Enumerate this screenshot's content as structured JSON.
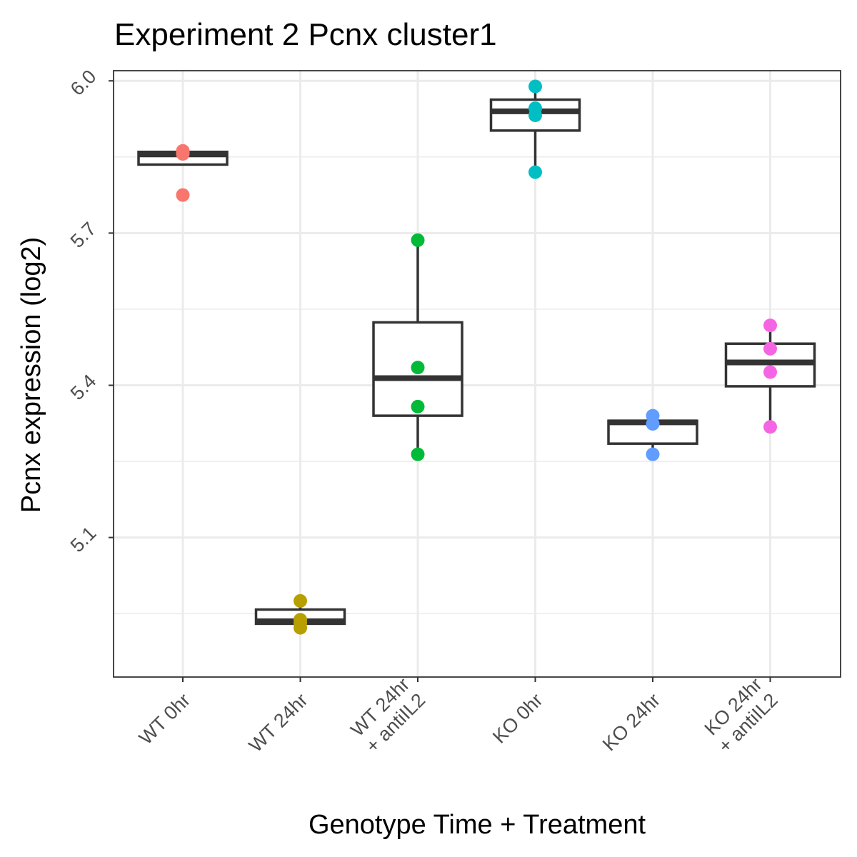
{
  "chart_data": {
    "type": "box",
    "title": "Experiment 2 Pcnx cluster1",
    "xlabel": "Genotype Time + Treatment",
    "ylabel": "Pcnx expression (log2)",
    "ylim": [
      4.825,
      6.02
    ],
    "yticks": [
      {
        "value": 5.1,
        "label": "5.1"
      },
      {
        "value": 5.4,
        "label": "5.4"
      },
      {
        "value": 5.7,
        "label": "5.7"
      },
      {
        "value": 6.0,
        "label": "6.0"
      }
    ],
    "yminor": [
      4.95,
      5.25,
      5.55,
      5.85
    ],
    "groups": [
      {
        "label_lines": [
          "WT 0hr"
        ],
        "color": "#F8766D",
        "box": {
          "q1": 5.835,
          "median": 5.855,
          "q3": 5.86,
          "whisker_low": 5.835,
          "whisker_high": 5.862
        },
        "points": [
          5.775,
          5.858,
          5.862,
          5.856
        ]
      },
      {
        "label_lines": [
          "WT 24hr"
        ],
        "color": "#B79F00",
        "box": {
          "q1": 4.93,
          "median": 4.935,
          "q3": 4.958,
          "whisker_low": 4.93,
          "whisker_high": 4.975
        },
        "points": [
          4.975,
          4.938,
          4.932,
          4.922
        ]
      },
      {
        "label_lines": [
          "WT 24hr",
          "+ antiIL2"
        ],
        "color": "#00BA38",
        "box": {
          "q1": 5.34,
          "median": 5.414,
          "q3": 5.524,
          "whisker_low": 5.264,
          "whisker_high": 5.686
        },
        "points": [
          5.686,
          5.435,
          5.358,
          5.264
        ]
      },
      {
        "label_lines": [
          "KO 0hr"
        ],
        "color": "#00BFC4",
        "box": {
          "q1": 5.902,
          "median": 5.94,
          "q3": 5.963,
          "whisker_low": 5.82,
          "whisker_high": 5.989
        },
        "points": [
          5.989,
          5.946,
          5.932,
          5.82
        ]
      },
      {
        "label_lines": [
          "KO 24hr"
        ],
        "color": "#619CFF",
        "box": {
          "q1": 5.285,
          "median": 5.327,
          "q3": 5.33,
          "whisker_low": 5.264,
          "whisker_high": 5.34
        },
        "points": [
          5.34,
          5.324,
          5.264
        ]
      },
      {
        "label_lines": [
          "KO 24hr",
          "+ antiIL2"
        ],
        "color": "#F564E3",
        "box": {
          "q1": 5.398,
          "median": 5.445,
          "q3": 5.482,
          "whisker_low": 5.318,
          "whisker_high": 5.518
        },
        "points": [
          5.518,
          5.472,
          5.426,
          5.318
        ]
      }
    ]
  }
}
